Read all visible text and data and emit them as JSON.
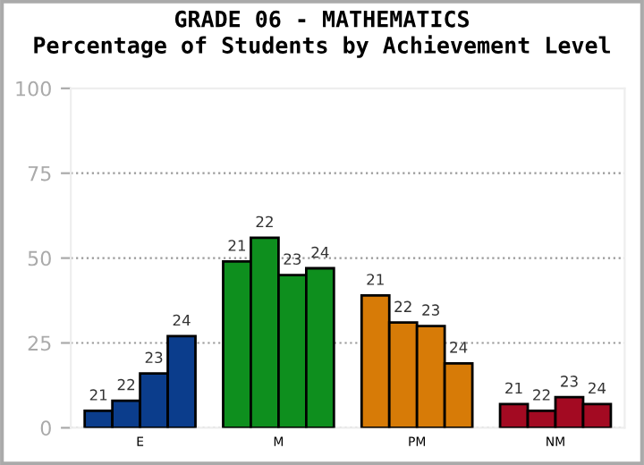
{
  "chart_data": {
    "type": "bar",
    "title": "GRADE 06 - MATHEMATICS",
    "subtitle": "Percentage of Students by Achievement Level",
    "categories": [
      "E",
      "M",
      "PM",
      "NM"
    ],
    "series": [
      {
        "name": "21",
        "colors": [
          "#0b3d8c",
          "#0e8f1e",
          "#d77b07",
          "#a30a22"
        ],
        "values": [
          5,
          49,
          39,
          7
        ]
      },
      {
        "name": "22",
        "colors": [
          "#0b3d8c",
          "#0e8f1e",
          "#d77b07",
          "#a30a22"
        ],
        "values": [
          8,
          56,
          31,
          5
        ]
      },
      {
        "name": "23",
        "colors": [
          "#0b3d8c",
          "#0e8f1e",
          "#d77b07",
          "#a30a22"
        ],
        "values": [
          16,
          45,
          30,
          9
        ]
      },
      {
        "name": "24",
        "colors": [
          "#0b3d8c",
          "#0e8f1e",
          "#d77b07",
          "#a30a22"
        ],
        "values": [
          27,
          47,
          19,
          7
        ]
      }
    ],
    "ylim": [
      0,
      100
    ],
    "yticks": [
      0,
      25,
      50,
      75,
      100
    ],
    "grid": "y",
    "legend": false
  }
}
